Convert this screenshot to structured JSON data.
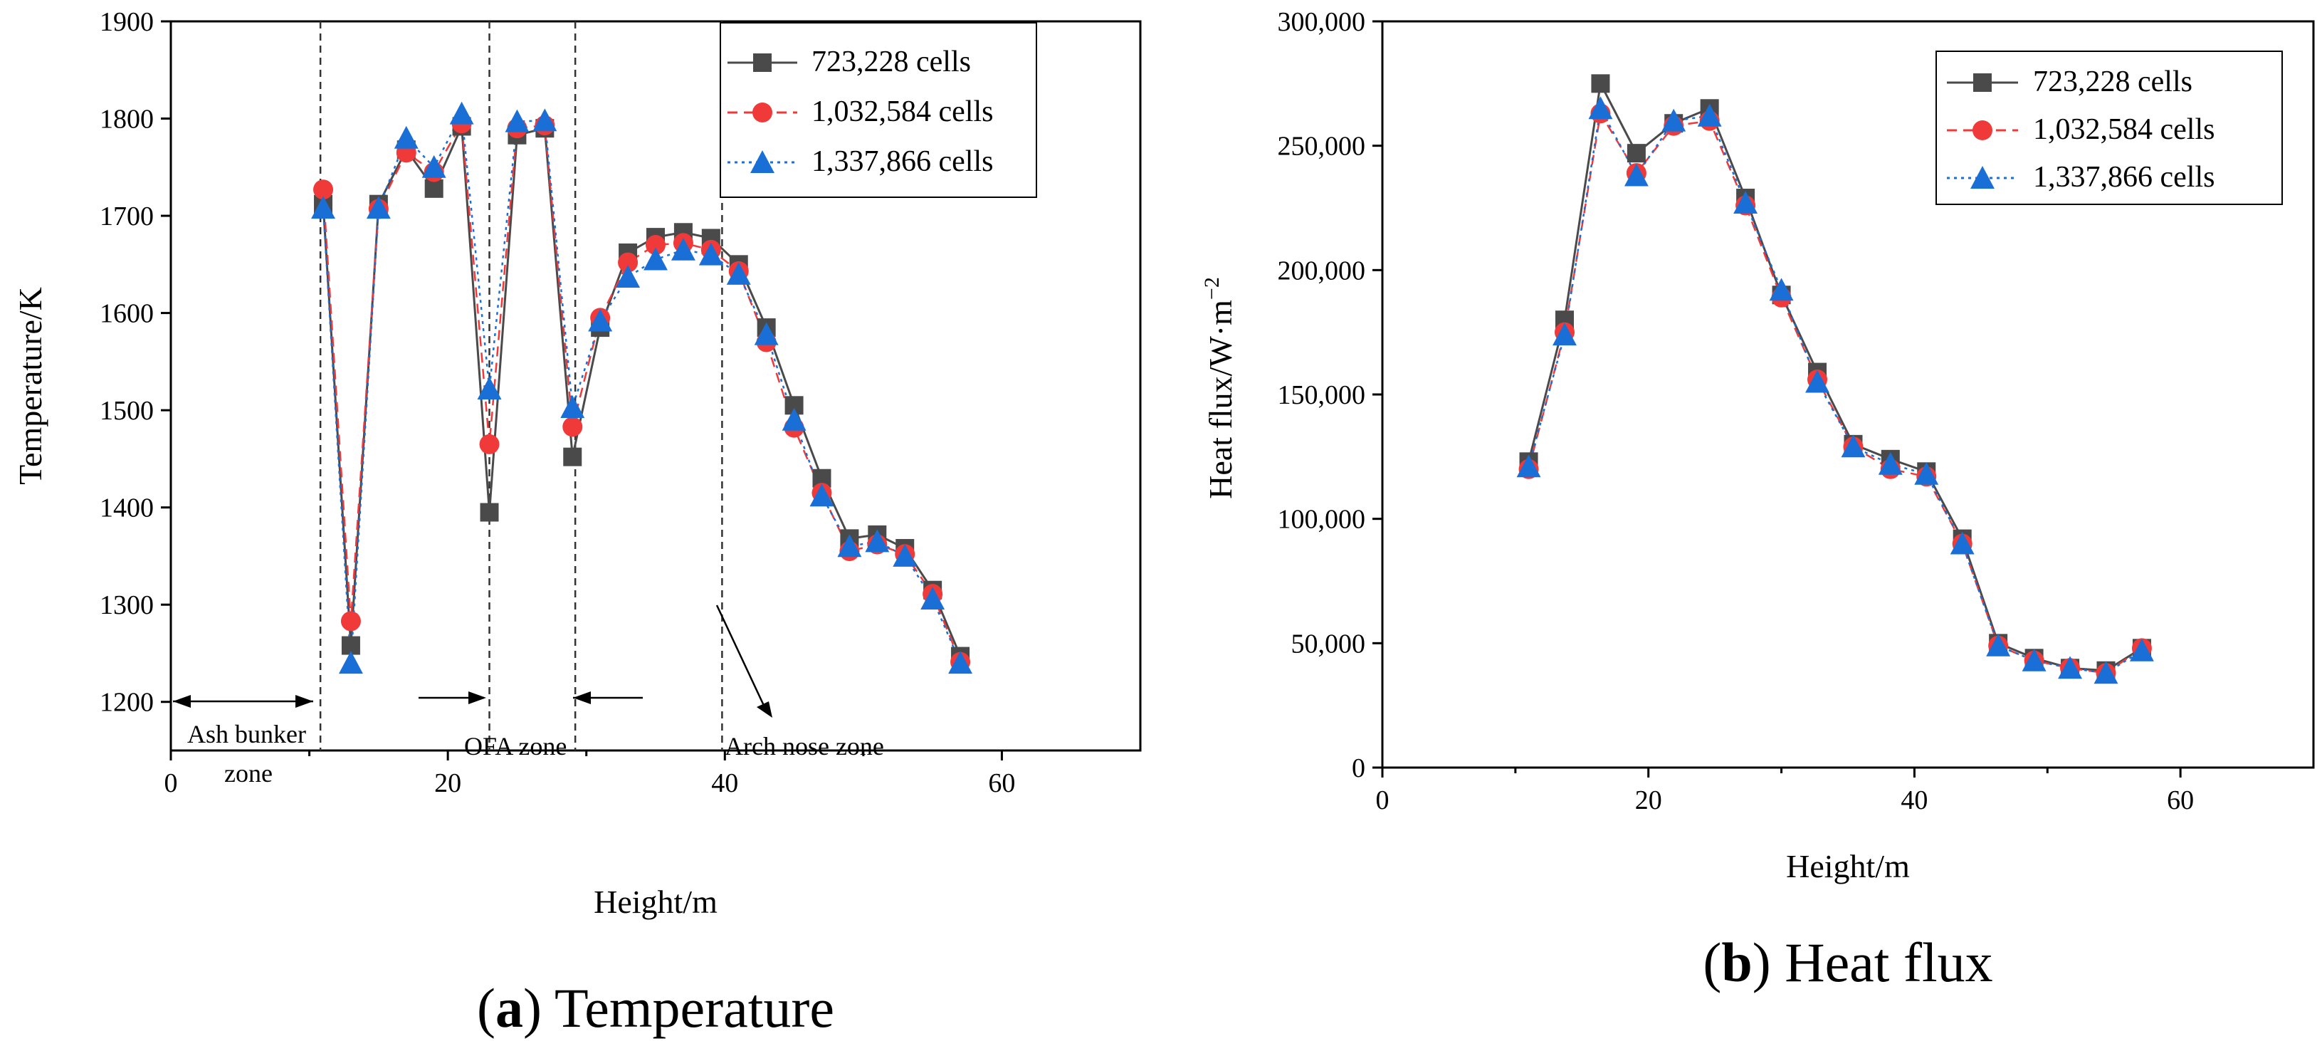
{
  "chart_data": [
    {
      "type": "line",
      "caption_bold": "a",
      "caption_text": " Temperature",
      "xlabel": "Height/m",
      "ylabel": "Temperature/K",
      "xlim": [
        0,
        70
      ],
      "ylim": [
        1150,
        1900
      ],
      "xticks": [
        0,
        20,
        40,
        60
      ],
      "yticks": [
        1200,
        1300,
        1400,
        1500,
        1600,
        1700,
        1800,
        1900
      ],
      "legend_position": "top-right",
      "zone_lines": [
        10.8,
        23.0,
        29.2,
        39.8
      ],
      "annotations": [
        {
          "id": "ash",
          "line1": "Ash bunker",
          "line2": "zone"
        },
        {
          "id": "ofa",
          "line1": "OFA zone"
        },
        {
          "id": "arch",
          "line1": "Arch nose zone"
        }
      ],
      "x": [
        11,
        13,
        15,
        17,
        19,
        21,
        23,
        25,
        27,
        29,
        31,
        33,
        35,
        37,
        39,
        41,
        43,
        45,
        47,
        49,
        51,
        53,
        55,
        57
      ],
      "series": [
        {
          "name": "723,228 cells",
          "color": "#4a4a4a",
          "marker": "square",
          "dash": "solid",
          "values": [
            1712,
            1258,
            1712,
            1768,
            1728,
            1792,
            1395,
            1783,
            1790,
            1452,
            1585,
            1662,
            1678,
            1683,
            1677,
            1650,
            1585,
            1505,
            1430,
            1368,
            1372,
            1358,
            1315,
            1247
          ]
        },
        {
          "name": "1,032,584 cells",
          "color": "#f03a3a",
          "marker": "circle",
          "dash": "dashed",
          "values": [
            1727,
            1283,
            1707,
            1765,
            1745,
            1795,
            1465,
            1790,
            1793,
            1483,
            1595,
            1652,
            1670,
            1672,
            1665,
            1643,
            1570,
            1482,
            1415,
            1355,
            1362,
            1352,
            1311,
            1241
          ]
        },
        {
          "name": "1,337,866 cells",
          "color": "#1a6fd6",
          "marker": "triangle",
          "dash": "dotted",
          "values": [
            1708,
            1240,
            1708,
            1780,
            1750,
            1805,
            1522,
            1797,
            1798,
            1503,
            1592,
            1637,
            1655,
            1665,
            1660,
            1640,
            1578,
            1490,
            1412,
            1360,
            1365,
            1350,
            1306,
            1240
          ]
        }
      ]
    },
    {
      "type": "line",
      "caption_bold": "b",
      "caption_text": " Heat flux",
      "xlabel": "Height/m",
      "ylabel": "Heat flux/W·m",
      "ylabel_superscript": "−2",
      "xlim": [
        0,
        70
      ],
      "ylim": [
        0,
        300000
      ],
      "xticks": [
        0,
        20,
        40,
        60
      ],
      "yticks": [
        0,
        50000,
        100000,
        150000,
        200000,
        250000,
        300000
      ],
      "ytick_labels": [
        "0",
        "50,000",
        "100,000",
        "150,000",
        "200,000",
        "250,000",
        "300,000"
      ],
      "legend_position": "top-right",
      "x": [
        11,
        13.7,
        16.4,
        19.1,
        21.9,
        24.6,
        27.3,
        30,
        32.7,
        35.4,
        38.2,
        40.9,
        43.6,
        46.3,
        49,
        51.7,
        54.4,
        57.1
      ],
      "series": [
        {
          "name": "723,228 cells",
          "color": "#4a4a4a",
          "marker": "square",
          "dash": "solid",
          "values": [
            123000,
            180000,
            275000,
            247000,
            259000,
            265000,
            229000,
            190000,
            159000,
            130000,
            124000,
            119000,
            92000,
            50000,
            44000,
            40000,
            39000,
            48000
          ]
        },
        {
          "name": "1,032,584 cells",
          "color": "#f03a3a",
          "marker": "circle",
          "dash": "dashed",
          "values": [
            120000,
            175000,
            263000,
            239000,
            258000,
            260000,
            226000,
            189000,
            156000,
            129000,
            120000,
            117000,
            90000,
            49000,
            43000,
            40000,
            38000,
            48000
          ]
        },
        {
          "name": "1,337,866 cells",
          "color": "#1a6fd6",
          "marker": "triangle",
          "dash": "dotted",
          "values": [
            121000,
            174000,
            265000,
            238000,
            260000,
            262000,
            227000,
            192000,
            155000,
            129000,
            122000,
            118000,
            90000,
            49000,
            43000,
            40000,
            38000,
            47000
          ]
        }
      ]
    }
  ]
}
